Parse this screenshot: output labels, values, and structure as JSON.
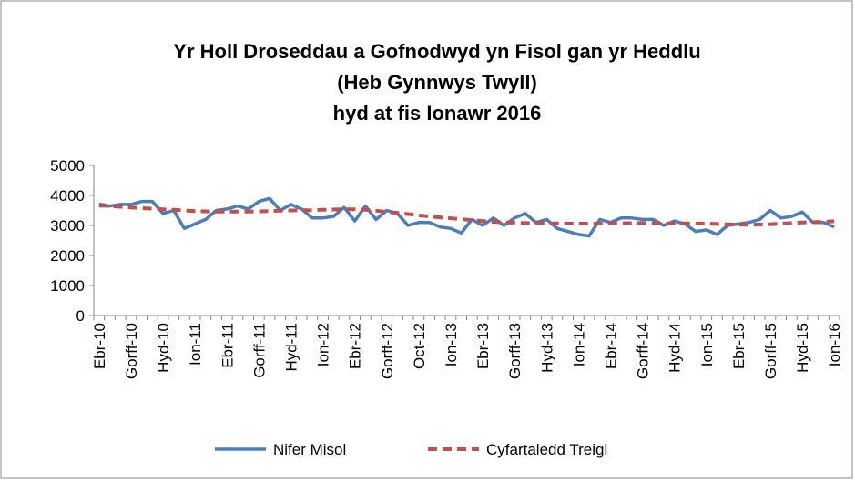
{
  "chart_data": {
    "type": "line",
    "title": [
      "Yr Holl Droseddau a Gofnodwyd yn Fisol gan yr Heddlu",
      "(Heb Gynnwys Twyll)",
      "hyd at fis Ionawr 2016"
    ],
    "categories": [
      "Ebr-10",
      null,
      null,
      "Gorff-10",
      null,
      null,
      "Hyd-10",
      null,
      null,
      "Ion-11",
      null,
      null,
      "Ebr-11",
      null,
      null,
      "Gorff-11",
      null,
      null,
      "Hyd-11",
      null,
      null,
      "Ion-12",
      null,
      null,
      "Ebr-12",
      null,
      null,
      "Gorff-12",
      null,
      null,
      "Oct-12",
      null,
      null,
      "Ion-13",
      null,
      null,
      "Ebr-13",
      null,
      null,
      "Gorff-13",
      null,
      null,
      "Hyd-13",
      null,
      null,
      "Ion-14",
      null,
      null,
      "Ebr-14",
      null,
      null,
      "Gorff-14",
      null,
      null,
      "Hyd-14",
      null,
      null,
      "Ion-15",
      null,
      null,
      "Ebr-15",
      null,
      null,
      "Gorff-15",
      null,
      null,
      "Hyd-15",
      null,
      null,
      "Ion-16"
    ],
    "series": [
      {
        "name": "Nifer Misol",
        "color": "#4a7ebb",
        "dash": false,
        "values": [
          3650,
          3650,
          3700,
          3700,
          3800,
          3800,
          3400,
          3500,
          2900,
          3050,
          3200,
          3500,
          3550,
          3650,
          3550,
          3800,
          3900,
          3500,
          3700,
          3550,
          3250,
          3250,
          3300,
          3600,
          3150,
          3650,
          3200,
          3500,
          3400,
          3000,
          3100,
          3100,
          2950,
          2900,
          2750,
          3200,
          3000,
          3250,
          3000,
          3250,
          3400,
          3100,
          3200,
          2900,
          2800,
          2700,
          2650,
          3200,
          3100,
          3250,
          3250,
          3200,
          3200,
          3000,
          3150,
          3050,
          2800,
          2850,
          2700,
          3000,
          3050,
          3100,
          3200,
          3500,
          3250,
          3300,
          3450,
          3100,
          3100,
          2950
        ]
      },
      {
        "name": "Cyfartaledd Treigl",
        "color": "#c0504d",
        "dash": true,
        "values": [
          3700,
          3650,
          3620,
          3600,
          3580,
          3560,
          3540,
          3520,
          3500,
          3480,
          3470,
          3460,
          3460,
          3460,
          3460,
          3470,
          3480,
          3490,
          3500,
          3510,
          3510,
          3520,
          3530,
          3540,
          3540,
          3520,
          3490,
          3450,
          3420,
          3380,
          3340,
          3300,
          3270,
          3240,
          3210,
          3180,
          3150,
          3120,
          3100,
          3090,
          3080,
          3080,
          3070,
          3070,
          3060,
          3060,
          3060,
          3060,
          3070,
          3070,
          3080,
          3080,
          3080,
          3070,
          3070,
          3070,
          3060,
          3060,
          3050,
          3040,
          3030,
          3020,
          3030,
          3040,
          3060,
          3080,
          3100,
          3110,
          3120,
          3140
        ]
      }
    ],
    "ylim": [
      0,
      5000
    ],
    "yticks": [
      0,
      1000,
      2000,
      3000,
      4000,
      5000
    ],
    "grid": false,
    "legend": "bottom"
  }
}
